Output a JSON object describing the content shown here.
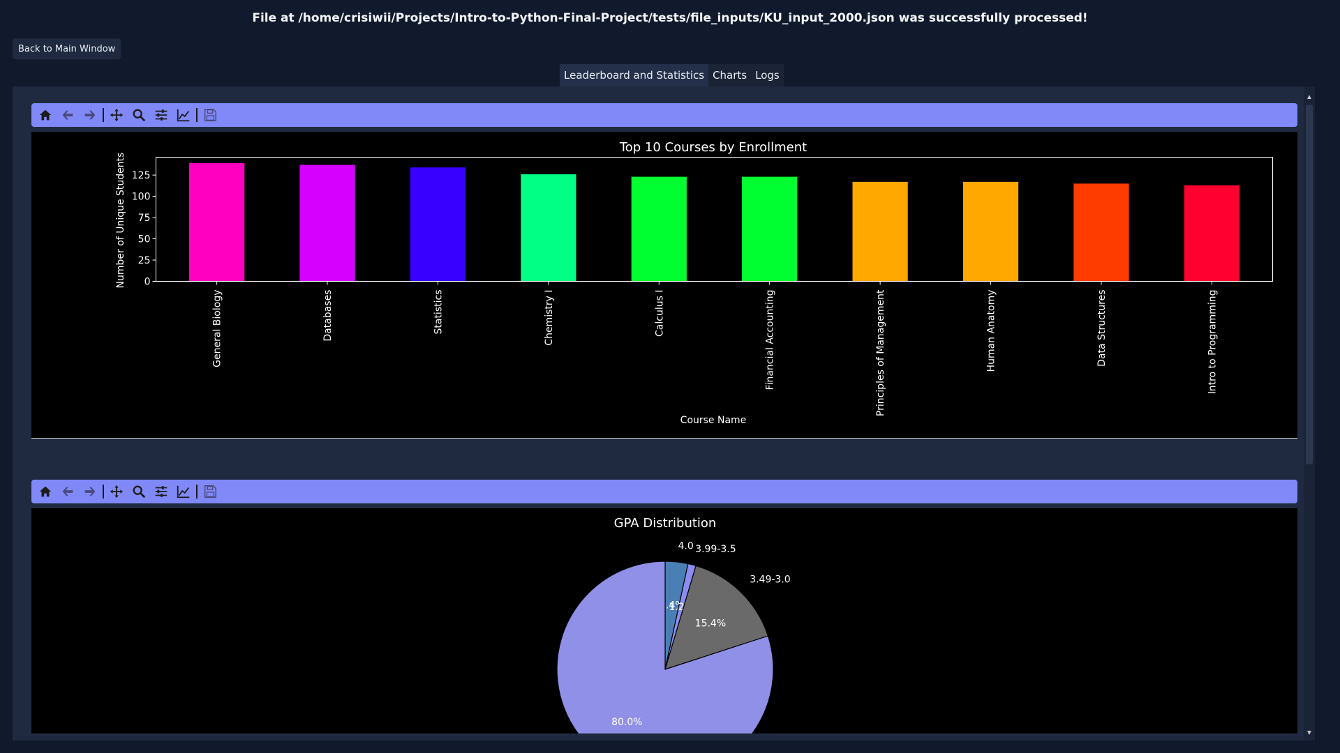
{
  "status": {
    "message": "File at /home/crisiwii/Projects/Intro-to-Python-Final-Project/tests/file_inputs/KU_input_2000.json was successfully processed!"
  },
  "buttons": {
    "back": "Back to Main Window"
  },
  "tabs": [
    {
      "label": "Leaderboard and Statistics",
      "active": true
    },
    {
      "label": "Charts",
      "active": false
    },
    {
      "label": "Logs",
      "active": false
    }
  ],
  "toolbar_icons": [
    "home-icon",
    "back-arrow-icon",
    "forward-arrow-icon",
    "pan-icon",
    "zoom-icon",
    "configure-subplots-icon",
    "edit-axis-icon",
    "save-icon"
  ],
  "chart_data": [
    {
      "type": "bar",
      "title": "Top 10 Courses by Enrollment",
      "xlabel": "Course Name",
      "ylabel": "Number of Unique Students",
      "categories": [
        "General Biology",
        "Databases",
        "Statistics",
        "Chemistry I",
        "Calculus I",
        "Financial Accounting",
        "Principles of Management",
        "Human Anatomy",
        "Data Structures",
        "Intro to Programming"
      ],
      "values": [
        139,
        137,
        134,
        126,
        123,
        123,
        117,
        117,
        115,
        113
      ],
      "colors": [
        "#ff00c0",
        "#d600ff",
        "#3800ff",
        "#00ff84",
        "#00ff30",
        "#00ff30",
        "#ffa800",
        "#ffa800",
        "#ff3c00",
        "#ff0030"
      ],
      "yticks": [
        "0",
        "25",
        "50",
        "75",
        "100",
        "125"
      ],
      "ylim": [
        0,
        146
      ],
      "grid": false
    },
    {
      "type": "pie",
      "title": "GPA Distribution",
      "slices": [
        {
          "label": "4.0",
          "pct": 3.4,
          "pct_text": "3.4%",
          "color": "#4a7fb5"
        },
        {
          "label": "3.99-3.5",
          "pct": 1.2,
          "pct_text": "1.2%",
          "color": "#8b8df0"
        },
        {
          "label": "3.49-3.0",
          "pct": 15.4,
          "pct_text": "15.4%",
          "color": "#6a6a6a"
        },
        {
          "label": "",
          "pct": 80.0,
          "pct_text": "80.0%",
          "color": "#9090e8"
        }
      ]
    }
  ]
}
